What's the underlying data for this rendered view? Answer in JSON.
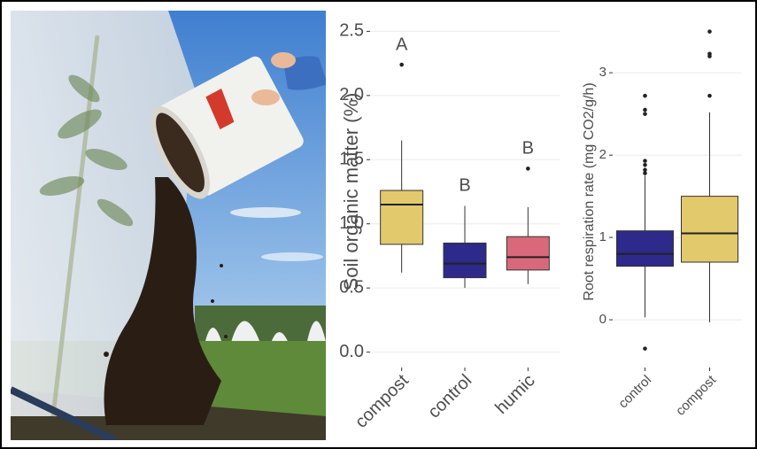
{
  "chart_data": [
    {
      "type": "boxplot",
      "ylabel": "Soil organic matter (%)",
      "categories": [
        "compost",
        "control",
        "humic"
      ],
      "colors": [
        "#e2c96b",
        "#2d2a8c",
        "#d9697a"
      ],
      "boxes": [
        {
          "low": 0.62,
          "q1": 0.84,
          "median": 1.15,
          "q3": 1.26,
          "high": 1.65,
          "outliers": [
            2.24
          ]
        },
        {
          "low": 0.5,
          "q1": 0.58,
          "median": 0.69,
          "q3": 0.85,
          "high": 1.14,
          "outliers": []
        },
        {
          "low": 0.53,
          "q1": 0.64,
          "median": 0.74,
          "q3": 0.9,
          "high": 1.13,
          "outliers": [
            1.43
          ]
        }
      ],
      "group_labels": [
        "A",
        "B",
        "B"
      ],
      "ylim": [
        -0.12,
        2.62
      ],
      "yticks": [
        {
          "value": 0,
          "label": "0.0"
        },
        {
          "value": 0.5,
          "label": "0.5"
        },
        {
          "value": 1,
          "label": "1.0"
        },
        {
          "value": 1.5,
          "label": "1.5"
        },
        {
          "value": 2,
          "label": "2.0"
        },
        {
          "value": 2.5,
          "label": "2.5"
        }
      ],
      "grid": true
    },
    {
      "type": "boxplot",
      "ylabel": "Root respiration rate (mg CO2/g/h)",
      "categories": [
        "control",
        "compost"
      ],
      "colors": [
        "#2d2a8c",
        "#e2c96b"
      ],
      "boxes": [
        {
          "low": 0.03,
          "q1": 0.65,
          "median": 0.8,
          "q3": 1.08,
          "high": 1.75,
          "outliers": [
            1.78,
            1.82,
            1.88,
            1.93,
            2.5,
            2.55,
            2.72,
            -0.35
          ]
        },
        {
          "low": -0.03,
          "q1": 0.7,
          "median": 1.05,
          "q3": 1.5,
          "high": 2.52,
          "outliers": [
            2.72,
            3.2,
            3.23,
            3.5
          ]
        }
      ],
      "ylim": [
        -0.58,
        3.69
      ],
      "yticks": [
        0,
        1,
        2,
        3
      ],
      "grid": true
    }
  ]
}
